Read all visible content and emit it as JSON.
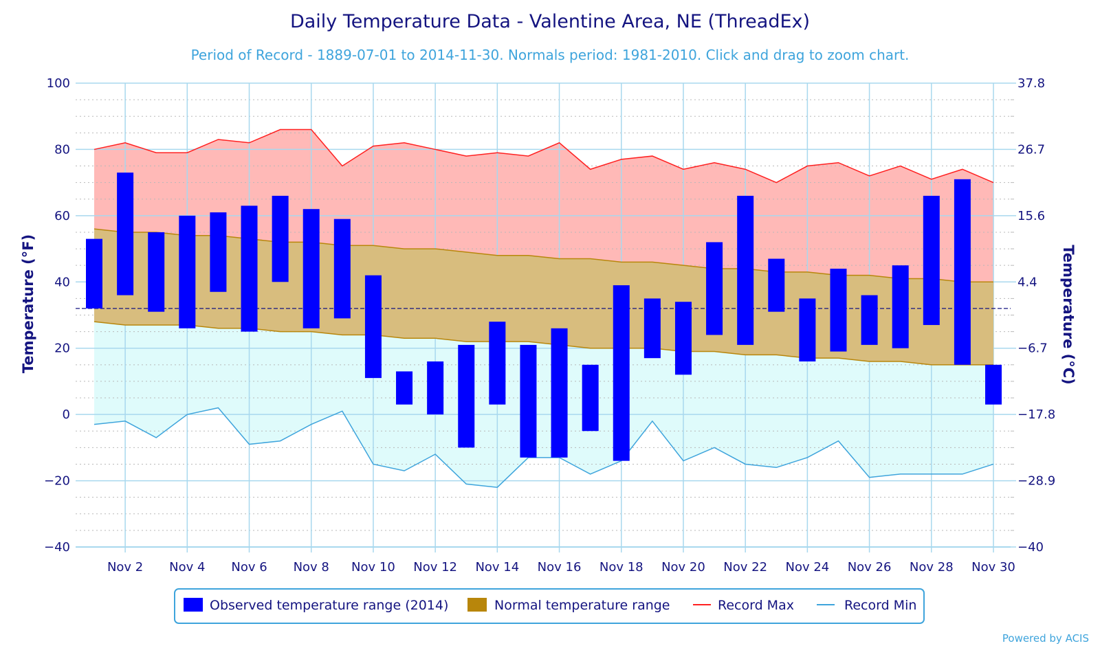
{
  "chart_data": {
    "type": "range-bar",
    "title": "Daily Temperature Data - Valentine Area, NE (ThreadEx)",
    "subtitle": "Period of Record - 1889-07-01 to 2014-11-30. Normals period: 1981-2010. Click and drag to zoom chart.",
    "ylabel_left": "Temperature (°F)",
    "ylabel_right": "Temperature (°C)",
    "ylim": [
      -40,
      100
    ],
    "y_ticks": [
      -40,
      -20,
      0,
      20,
      40,
      60,
      80,
      100
    ],
    "y_ticks_right": [
      "-40",
      "-28.9",
      "-17.8",
      "-6.7",
      "4.4",
      "15.6",
      "26.7",
      "37.8"
    ],
    "x_ticks": [
      "Nov 2",
      "Nov 4",
      "Nov 6",
      "Nov 8",
      "Nov 10",
      "Nov 12",
      "Nov 14",
      "Nov 16",
      "Nov 18",
      "Nov 20",
      "Nov 22",
      "Nov 24",
      "Nov 26",
      "Nov 28",
      "Nov 30"
    ],
    "days": [
      1,
      2,
      3,
      4,
      5,
      6,
      7,
      8,
      9,
      10,
      11,
      12,
      13,
      14,
      15,
      16,
      17,
      18,
      19,
      20,
      21,
      22,
      23,
      24,
      25,
      26,
      27,
      28,
      29,
      30
    ],
    "freezing_line": 32,
    "grid": true,
    "legend_position": "bottom",
    "credit": "Powered by ACIS",
    "series": [
      {
        "name": "Observed temperature range (2014)",
        "color": "#0000ff",
        "low": [
          32,
          36,
          31,
          26,
          37,
          25,
          40,
          26,
          29,
          11,
          3,
          0,
          -10,
          3,
          -13,
          -13,
          -5,
          -14,
          17,
          12,
          24,
          21,
          31,
          16,
          19,
          21,
          20,
          27,
          15,
          3
        ],
        "high": [
          53,
          73,
          55,
          60,
          61,
          63,
          66,
          62,
          59,
          42,
          13,
          16,
          21,
          28,
          21,
          26,
          15,
          39,
          35,
          34,
          52,
          66,
          47,
          35,
          44,
          36,
          45,
          66,
          71,
          15
        ]
      },
      {
        "name": "Normal temperature range",
        "color": "#b8860b",
        "low": [
          28,
          27,
          27,
          27,
          26,
          26,
          25,
          25,
          24,
          24,
          23,
          23,
          22,
          22,
          22,
          21,
          20,
          20,
          20,
          19,
          19,
          18,
          18,
          17,
          17,
          16,
          16,
          15,
          15,
          15
        ],
        "high": [
          56,
          55,
          55,
          54,
          54,
          53,
          52,
          52,
          51,
          51,
          50,
          50,
          49,
          48,
          48,
          47,
          47,
          46,
          46,
          45,
          44,
          44,
          43,
          43,
          42,
          42,
          41,
          41,
          40,
          40
        ]
      },
      {
        "name": "Record Max",
        "color": "#ff2020",
        "values": [
          80,
          82,
          79,
          79,
          83,
          82,
          86,
          86,
          75,
          81,
          82,
          80,
          78,
          79,
          78,
          82,
          74,
          77,
          78,
          74,
          76,
          74,
          70,
          75,
          76,
          72,
          75,
          71,
          74,
          70
        ]
      },
      {
        "name": "Record Min",
        "color": "#3ea4dc",
        "values": [
          -3,
          -2,
          -7,
          0,
          2,
          -9,
          -8,
          -3,
          1,
          -15,
          -17,
          -12,
          -21,
          -22,
          -13,
          -13,
          -18,
          -14,
          -2,
          -14,
          -10,
          -15,
          -16,
          -13,
          -8,
          -19,
          -18,
          -18,
          -18,
          -15
        ]
      }
    ]
  }
}
